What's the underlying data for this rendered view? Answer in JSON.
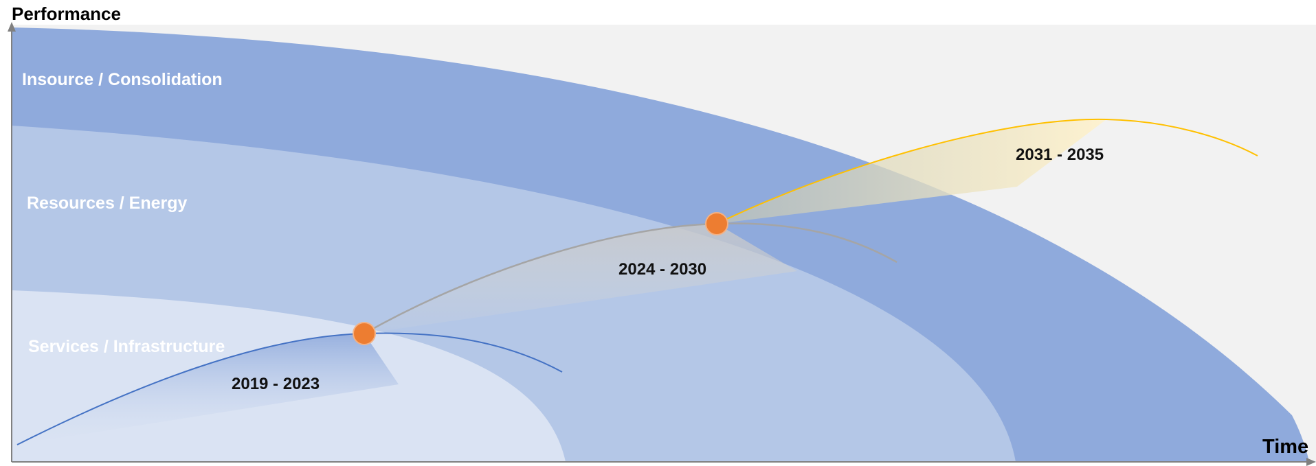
{
  "axes": {
    "y_title": "Performance",
    "x_title": "Time"
  },
  "bands": [
    {
      "label": "Insource / Consolidation",
      "color": "#8FAADC"
    },
    {
      "label": "Resources / Energy",
      "color": "#B4C7E7"
    },
    {
      "label": "Services / Infrastructure",
      "color": "#DAE3F3"
    }
  ],
  "curves": [
    {
      "period": "2019 - 2023",
      "color": "#4472C4"
    },
    {
      "period": "2024 - 2030",
      "color": "#A5A5A5"
    },
    {
      "period": "2031 - 2035",
      "color": "#FFC000"
    }
  ],
  "milestone_color": "#ED7D31",
  "background_color": "#F2F2F2"
}
